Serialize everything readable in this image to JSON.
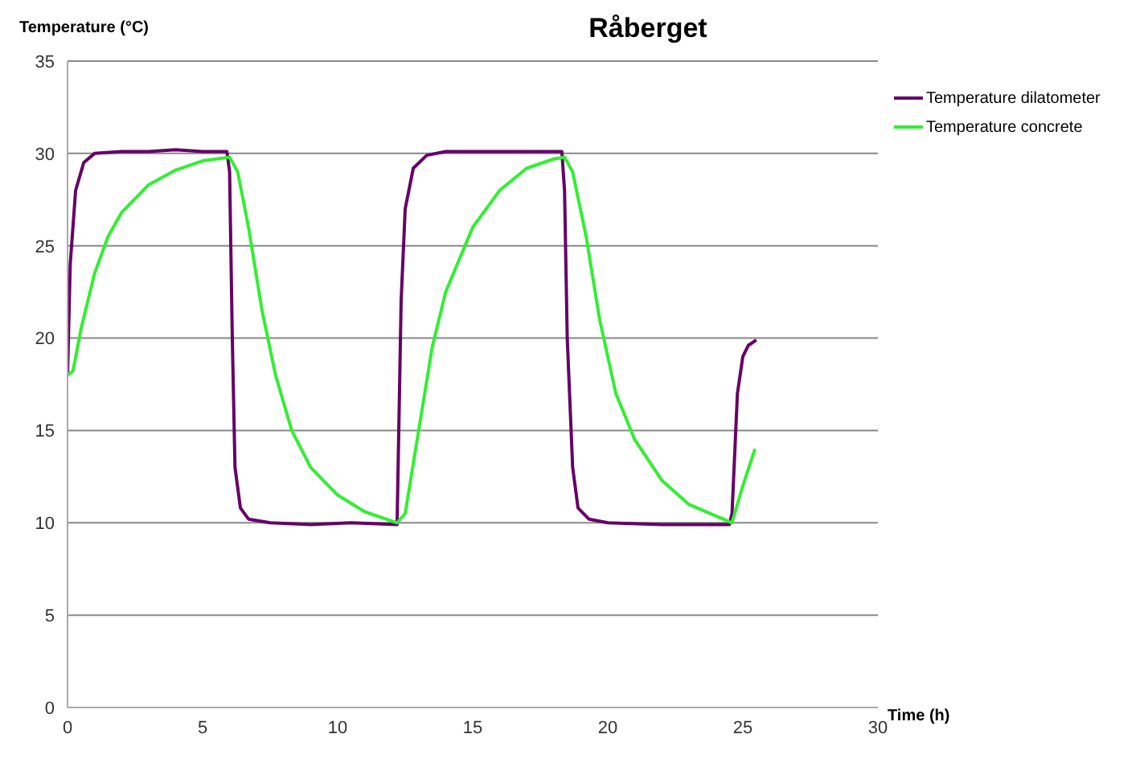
{
  "chart_data": {
    "type": "line",
    "title": "Råberget",
    "xlabel": "Time (h)",
    "ylabel": "Temperature  (°C)",
    "xlim": [
      0,
      30
    ],
    "xticks": [
      0,
      5,
      10,
      15,
      20,
      25,
      30
    ],
    "ylim": [
      0,
      35
    ],
    "yticks": [
      0,
      5,
      10,
      15,
      20,
      25,
      30,
      35
    ],
    "grid": "y",
    "legend": "top right",
    "series": [
      {
        "name": "Temperature dilatometer",
        "color": "#660066",
        "x": [
          0,
          0.1,
          0.3,
          0.6,
          1,
          2,
          3,
          4,
          5,
          5.9,
          6.0,
          6.1,
          6.2,
          6.4,
          6.7,
          7.5,
          9,
          10.5,
          12.2,
          12.35,
          12.5,
          12.8,
          13.3,
          14,
          16,
          18.3,
          18.4,
          18.5,
          18.7,
          18.9,
          19.3,
          20,
          22,
          24.5,
          24.6,
          24.8,
          25.0,
          25.2,
          25.5
        ],
        "values": [
          18,
          24,
          28,
          29.5,
          30,
          30.1,
          30.1,
          30.2,
          30.1,
          30.1,
          29,
          20,
          13,
          10.8,
          10.2,
          10.0,
          9.9,
          10.0,
          9.9,
          22,
          27,
          29.2,
          29.9,
          30.1,
          30.1,
          30.1,
          28,
          20,
          13,
          10.8,
          10.2,
          10.0,
          9.9,
          9.9,
          10.5,
          17,
          19,
          19.6,
          19.9
        ]
      },
      {
        "name": "Temperature concrete",
        "color": "#33ee33",
        "x": [
          0,
          0.2,
          0.5,
          1,
          1.5,
          2,
          3,
          4,
          5,
          6,
          6.3,
          6.7,
          7.2,
          7.7,
          8.3,
          9,
          10,
          11,
          12.2,
          12.5,
          13,
          13.5,
          14,
          15,
          16,
          17,
          18,
          18.4,
          18.7,
          19.2,
          19.7,
          20.3,
          21,
          22,
          23,
          24.6,
          25,
          25.45
        ],
        "values": [
          18,
          18.2,
          20.5,
          23.5,
          25.5,
          26.8,
          28.3,
          29.1,
          29.6,
          29.8,
          29,
          26,
          21.5,
          18,
          15,
          13,
          11.5,
          10.6,
          10.0,
          10.5,
          15,
          19.5,
          22.5,
          26,
          28,
          29.2,
          29.7,
          29.8,
          29,
          25.5,
          21,
          17,
          14.5,
          12.3,
          11,
          10,
          12,
          14
        ]
      }
    ]
  }
}
